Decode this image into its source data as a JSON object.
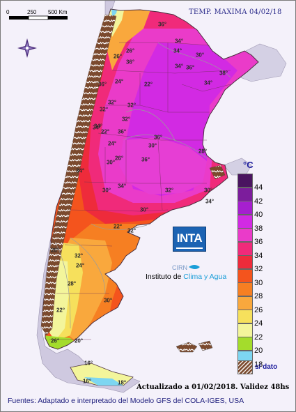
{
  "title": "TEMP. MAXIMA 04/02/18",
  "scale": {
    "labels": [
      "0",
      "250",
      "500 Km"
    ]
  },
  "legend": {
    "unit": "°C",
    "nodata_label": "s/ dato",
    "nodata_color": "#7b4a2e",
    "bins": [
      {
        "value": "44",
        "color": "#4a1460"
      },
      {
        "value": "42",
        "color": "#7c1d9c"
      },
      {
        "value": "40",
        "color": "#a61fcf"
      },
      {
        "value": "38",
        "color": "#d22ae3"
      },
      {
        "value": "36",
        "color": "#ea3bc9"
      },
      {
        "value": "34",
        "color": "#f02a7a"
      },
      {
        "value": "32",
        "color": "#ee2b3b"
      },
      {
        "value": "30",
        "color": "#f4541d"
      },
      {
        "value": "28",
        "color": "#f67f22"
      },
      {
        "value": "26",
        "color": "#f9a83d"
      },
      {
        "value": "24",
        "color": "#f6e05c"
      },
      {
        "value": "22",
        "color": "#f3f59b"
      },
      {
        "value": "20",
        "color": "#a4dc2c"
      },
      {
        "value": "18",
        "color": "#7dd6f1"
      }
    ]
  },
  "isotherm_labels": [
    "36",
    "34",
    "22",
    "34",
    "32",
    "26",
    "36",
    "26",
    "32",
    "34",
    "32",
    "36",
    "36",
    "32",
    "24",
    "34",
    "36",
    "24",
    "30",
    "26",
    "30",
    "34",
    "22",
    "34",
    "36",
    "34",
    "30",
    "38",
    "34",
    "36",
    "30",
    "34",
    "32",
    "30",
    "28",
    "22",
    "26",
    "24",
    "28",
    "32",
    "22",
    "30",
    "26",
    "20",
    "16",
    "18",
    "16",
    "32",
    "30"
  ],
  "logo": {
    "word": "INTA",
    "cirn": "CIRN",
    "institute_prefix": "Instituto de",
    "institute_accent": "Clima y Agua"
  },
  "updated": "Actualizado a 01/02/2018. Validez 48hs",
  "sources": "Fuentes: Adaptado e interpretado del Modelo GFS del COLA-IGES, USA"
}
